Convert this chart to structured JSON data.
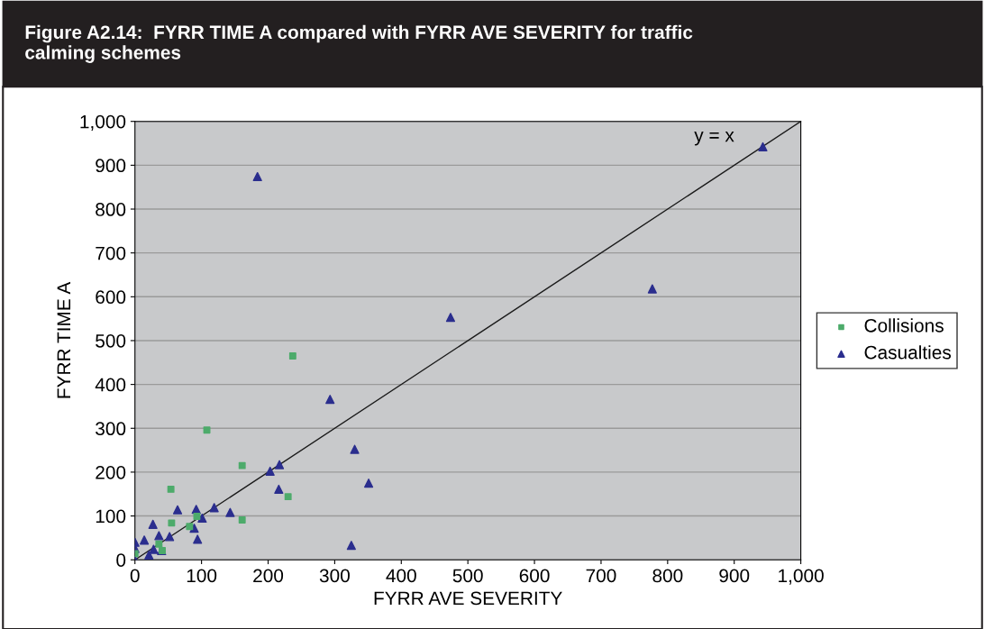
{
  "chart_data": {
    "type": "scatter",
    "title": "Figure A2.14:  FYRR TIME A compared with FYRR AVE SEVERITY for traffic\ncalming schemes",
    "xlabel": "FYRR AVE SEVERITY",
    "ylabel": "FYRR TIME A",
    "xlim": [
      0,
      1000
    ],
    "ylim": [
      0,
      1000
    ],
    "xticks": [
      0,
      100,
      200,
      300,
      400,
      500,
      600,
      700,
      800,
      900,
      {
        "value": 1000,
        "label": "1,000"
      }
    ],
    "yticks": [
      0,
      100,
      200,
      300,
      400,
      500,
      600,
      700,
      800,
      900,
      {
        "value": 1000,
        "label": "1,000"
      }
    ],
    "grid": "y",
    "legend": "right",
    "annotations": [
      "y = x"
    ],
    "series": [
      {
        "name": "Collisions",
        "marker": "square",
        "color": "#4dab6b",
        "x": [
          237,
          108,
          161,
          54,
          230,
          161,
          55,
          82,
          93,
          36,
          41,
          0
        ],
        "values": [
          465,
          296,
          215,
          161,
          144,
          91,
          84,
          76,
          99,
          36,
          21,
          14
        ]
      },
      {
        "name": "Casualties",
        "marker": "triangle",
        "color": "#2b2e8e",
        "x": [
          0,
          0,
          0,
          14,
          21,
          27,
          28,
          36,
          40,
          52,
          64,
          89,
          92,
          94,
          101,
          119,
          143,
          203,
          217,
          216,
          325,
          330,
          351,
          293,
          184,
          474,
          777,
          943
        ],
        "values": [
          40,
          26,
          0,
          45,
          11,
          81,
          24,
          55,
          21,
          53,
          114,
          72,
          115,
          47,
          95,
          119,
          108,
          202,
          217,
          161,
          33,
          252,
          175,
          366,
          874,
          553,
          618,
          942
        ]
      },
      {
        "type": "line",
        "color": "#1a1a1a",
        "x": [
          0,
          1000
        ],
        "values": [
          0,
          1000
        ]
      }
    ]
  }
}
